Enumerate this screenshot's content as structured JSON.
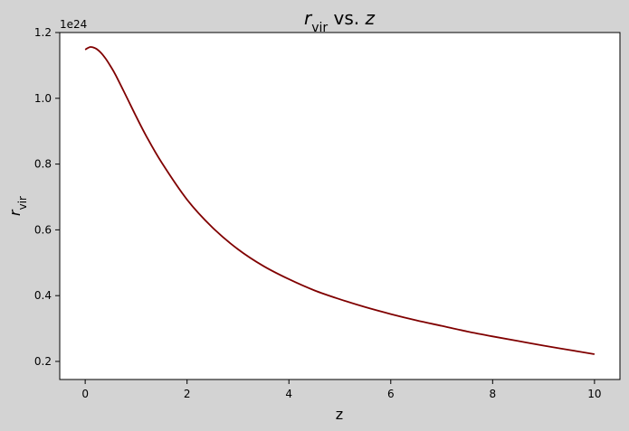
{
  "chart_data": {
    "type": "line",
    "title": {
      "var": "r",
      "sub": "vir",
      "mid": " vs. ",
      "var2": "z"
    },
    "xlabel": "z",
    "ylabel": {
      "var": "r",
      "sub": "vir"
    },
    "offset_text": "1e24",
    "xlim": [
      -0.5,
      10.5
    ],
    "ylim": [
      0.145,
      1.2
    ],
    "xticks": [
      0,
      2,
      4,
      6,
      8,
      10
    ],
    "xtick_labels": [
      "0",
      "2",
      "4",
      "6",
      "8",
      "10"
    ],
    "yticks": [
      0.2,
      0.4,
      0.6,
      0.8,
      1.0,
      1.2
    ],
    "ytick_labels": [
      "0.2",
      "0.4",
      "0.6",
      "0.8",
      "1.0",
      "1.2"
    ],
    "grid": false,
    "colors": {
      "line": "#800000",
      "figure_bg": "#d3d3d3",
      "axes_bg": "#ffffff"
    },
    "series": [
      {
        "x": [
          0,
          0.1,
          0.2,
          0.3,
          0.4,
          0.5,
          0.6,
          0.8,
          1.0,
          1.2,
          1.5,
          2.0,
          2.5,
          3.0,
          3.5,
          4.0,
          4.5,
          5.0,
          5.5,
          6.0,
          6.5,
          7.0,
          7.5,
          8.0,
          8.5,
          9.0,
          9.5,
          10.0
        ],
        "y": [
          1.148,
          1.156,
          1.152,
          1.14,
          1.121,
          1.097,
          1.07,
          1.008,
          0.945,
          0.885,
          0.805,
          0.692,
          0.607,
          0.541,
          0.49,
          0.45,
          0.416,
          0.389,
          0.365,
          0.344,
          0.325,
          0.308,
          0.291,
          0.276,
          0.262,
          0.248,
          0.235,
          0.222
        ]
      }
    ]
  }
}
